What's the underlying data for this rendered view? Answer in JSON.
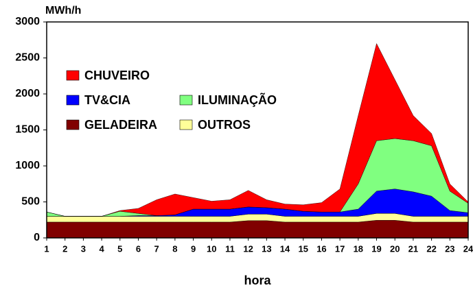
{
  "chart_data": {
    "type": "stacked_area",
    "title": "MWh/h",
    "x_label": "hora",
    "x": [
      1,
      2,
      3,
      4,
      5,
      6,
      7,
      8,
      9,
      10,
      11,
      12,
      13,
      14,
      15,
      16,
      17,
      18,
      19,
      20,
      21,
      22,
      23,
      24
    ],
    "xlim": [
      1,
      24
    ],
    "xticks": [
      1,
      2,
      3,
      4,
      5,
      6,
      7,
      8,
      9,
      10,
      11,
      12,
      13,
      14,
      15,
      16,
      17,
      18,
      19,
      20,
      21,
      22,
      23,
      24
    ],
    "ylim": [
      0,
      3000
    ],
    "yticks": [
      0,
      500,
      1000,
      1500,
      2000,
      2500,
      3000
    ],
    "series": [
      {
        "name": "GELADEIRA",
        "color": "#800000",
        "values": [
          220,
          220,
          220,
          220,
          220,
          220,
          220,
          220,
          220,
          220,
          220,
          240,
          240,
          220,
          220,
          220,
          220,
          220,
          245,
          245,
          220,
          220,
          220,
          220
        ]
      },
      {
        "name": "OUTROS",
        "color": "#ffff99",
        "values": [
          80,
          80,
          80,
          80,
          80,
          80,
          80,
          80,
          80,
          80,
          80,
          90,
          90,
          80,
          80,
          80,
          80,
          80,
          95,
          95,
          80,
          80,
          80,
          80
        ]
      },
      {
        "name": "TV&CIA",
        "color": "#0000ff",
        "values": [
          0,
          0,
          0,
          0,
          0,
          10,
          10,
          20,
          100,
          100,
          100,
          100,
          90,
          100,
          70,
          60,
          60,
          100,
          310,
          340,
          340,
          280,
          80,
          50
        ]
      },
      {
        "name": "ILUMINAÇÃO",
        "color": "#80ff80",
        "values": [
          60,
          0,
          0,
          0,
          70,
          30,
          0,
          0,
          0,
          0,
          0,
          0,
          0,
          0,
          0,
          0,
          0,
          350,
          700,
          700,
          710,
          700,
          270,
          130
        ]
      },
      {
        "name": "CHUVEIRO",
        "color": "#ff0000",
        "values": [
          0,
          0,
          0,
          0,
          10,
          70,
          220,
          290,
          160,
          110,
          130,
          230,
          110,
          70,
          90,
          130,
          320,
          950,
          1350,
          820,
          350,
          170,
          100,
          20
        ]
      }
    ]
  }
}
